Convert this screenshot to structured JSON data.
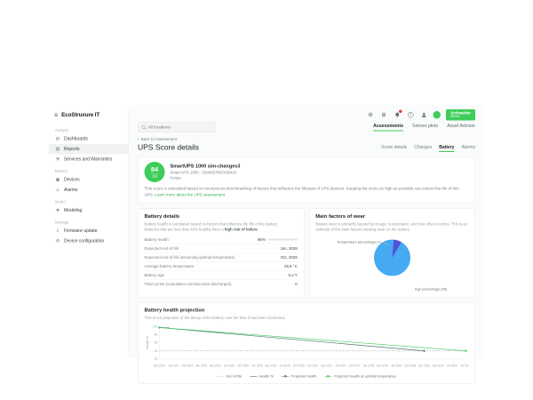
{
  "brand": {
    "name": "EcoStruxure IT"
  },
  "sidebar": {
    "sections": [
      {
        "label": "Analyze",
        "items": [
          {
            "label": "Dashboards"
          },
          {
            "label": "Reports"
          },
          {
            "label": "Services and Warranties"
          }
        ]
      },
      {
        "label": "Monitor",
        "items": [
          {
            "label": "Devices"
          },
          {
            "label": "Alarms"
          }
        ]
      },
      {
        "label": "Model",
        "items": [
          {
            "label": "Modeling"
          }
        ]
      },
      {
        "label": "Manage",
        "items": [
          {
            "label": "Firmware update"
          },
          {
            "label": "Device configuration"
          }
        ]
      }
    ]
  },
  "topbar": {
    "schneider_line1": "Schneider",
    "schneider_line2": "Electric"
  },
  "search": {
    "placeholder": "All locations"
  },
  "tabs": {
    "items": [
      {
        "label": "Assessments"
      },
      {
        "label": "Sensor plots"
      },
      {
        "label": "Asset Advisor"
      }
    ]
  },
  "page": {
    "back_link": "Back to Assessment",
    "title": "UPS Score details",
    "subtabs": [
      {
        "label": "Score details"
      },
      {
        "label": "Changes"
      },
      {
        "label": "Battery"
      },
      {
        "label": "Alarms"
      }
    ]
  },
  "device": {
    "score": "84",
    "score_total": "100",
    "name": "SmartUPS 1000 sim-changes3",
    "model_serial": "Smart-UPS 1000 · 3S4450786TA00410",
    "location": "Kenya",
    "description": "This score is calculated based on anonymous benchmarking of factors that influence the lifespan of UPS devices. Keeping the score as high as possible can extend the life of this UPS. ",
    "learn_more": "Learn more about the UPS assessment"
  },
  "battery_details": {
    "title": "Battery details",
    "description_line1": "Battery health is calculated based on factors that influence the life of the battery.",
    "description_line2": "Batteries that are less than 40% healthy have a ",
    "description_bold": "high risk of failure.",
    "health_bar_percent": 96,
    "rows": [
      {
        "label": "Battery health",
        "value": "96%"
      },
      {
        "label": "Expected end of life",
        "value": "Jan, 2029"
      },
      {
        "label": "Expected end of life (assuming optimal temperature)",
        "value": "Oct, 2029"
      },
      {
        "label": "Average battery temperature",
        "value": "25.6 °C"
      },
      {
        "label": "Battery age",
        "value": "0.2 Y"
      },
      {
        "label": "Total cycles (cumulative nominal wear discharged)",
        "value": "0"
      }
    ]
  },
  "wear": {
    "title": "Main factors of wear",
    "description": "Battery wear is primarily caused by its age, temperature, and how often it cycles. This is an estimate of the main factors causing wear on the battery.",
    "pie_start_deg": 5,
    "slices": [
      {
        "label": "Temperature percentage (7)",
        "value": 7,
        "color": "#5551d6"
      },
      {
        "label": "Age percentage (93)",
        "value": 93,
        "color": "#45aaf2"
      }
    ]
  },
  "projection": {
    "title": "Battery health projection",
    "description": "This is our projection of the decay of the battery over the time it has been monitored."
  },
  "chart_data": {
    "type": "line",
    "title": "Battery health projection",
    "xlabel": "",
    "ylabel": "Health %",
    "ylim": [
      20,
      100
    ],
    "yticks": [
      100,
      80,
      60,
      40,
      20
    ],
    "grid": false,
    "legend_position": "bottom",
    "x_labels": [
      "Apr 2024",
      "Jul 2024",
      "Oct 2024",
      "Jan 2025",
      "Apr 2025",
      "Jul 2025",
      "Oct 2025",
      "Jan 2026",
      "Apr 2026",
      "Jul 2026",
      "Oct 2026",
      "Jan 2027",
      "Apr 2027",
      "Jul 2027",
      "Oct 2027",
      "Jan 2028",
      "Apr 2028",
      "Jul 2028",
      "Oct 2028",
      "Jan 2029",
      "Apr 2029",
      "Jul 2029",
      "Oct 2029"
    ],
    "series": [
      {
        "name": "End of life",
        "color": "#b3bac0",
        "dash": true,
        "marker": false,
        "points": [
          [
            0,
            40
          ],
          [
            22,
            40
          ]
        ]
      },
      {
        "name": "Health %",
        "color": "#37474f",
        "dash": false,
        "marker": false,
        "points": [
          [
            0,
            97
          ],
          [
            0.7,
            96.2
          ]
        ]
      },
      {
        "name": "Projected health",
        "color": "#4e7a6c",
        "dash": false,
        "marker": true,
        "points": [
          [
            0,
            97
          ],
          [
            19,
            40
          ]
        ]
      },
      {
        "name": "Projected health at optimal temperature",
        "color": "#3dcd58",
        "dash": false,
        "marker": true,
        "points": [
          [
            0,
            97
          ],
          [
            22,
            40
          ]
        ]
      }
    ]
  },
  "colors": {
    "accent": "#3dcd58",
    "link": "#2fae4d",
    "badge": "#e53935"
  }
}
